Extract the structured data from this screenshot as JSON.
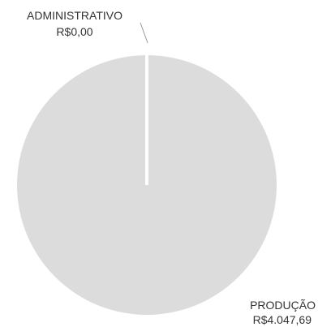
{
  "chart_data": {
    "type": "pie",
    "categories": [
      "ADMINISTRATIVO",
      "PRODUÇÃO"
    ],
    "values": [
      0.0,
      4047.69
    ],
    "value_labels": [
      "R$0,00",
      "R$4.047,69"
    ],
    "colors": [
      "#d9d9d9",
      "#dcdcdc"
    ],
    "title": "",
    "legend": "none"
  }
}
